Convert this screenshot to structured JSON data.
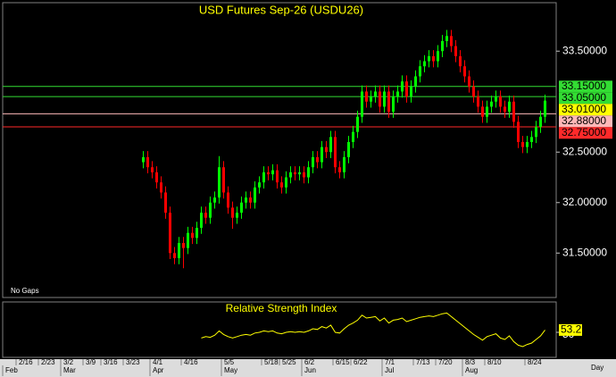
{
  "chart_data": [
    {
      "type": "candlestick",
      "title": "USD Futures Sep-26  (USDU26)",
      "note": "No Gaps",
      "x_label": "Day",
      "up_color": "#00ff00",
      "down_color": "#ff0000",
      "categories": [
        null,
        null,
        null,
        "2/16",
        null,
        null,
        null,
        null,
        "2/23",
        null,
        null,
        null,
        null,
        "3/2",
        null,
        null,
        null,
        null,
        "3/9",
        null,
        null,
        null,
        "3/16",
        null,
        null,
        null,
        null,
        "3/23",
        null,
        null,
        null,
        null,
        null,
        "4/1",
        null,
        null,
        null,
        null,
        null,
        null,
        "4/16",
        null,
        null,
        null,
        null,
        null,
        null,
        null,
        null,
        "5/5",
        null,
        null,
        null,
        null,
        null,
        null,
        null,
        null,
        "5/18",
        null,
        null,
        null,
        "5/25",
        null,
        null,
        null,
        null,
        "6/2",
        null,
        null,
        null,
        null,
        null,
        null,
        "6/15",
        null,
        null,
        null,
        "6/22",
        null,
        null,
        null,
        null,
        null,
        null,
        "7/1",
        null,
        null,
        null,
        null,
        null,
        null,
        "7/13",
        null,
        null,
        null,
        null,
        "7/20",
        null,
        null,
        null,
        null,
        null,
        "8/3",
        null,
        null,
        null,
        null,
        "8/10",
        null,
        null,
        null,
        null,
        null,
        null,
        null,
        null,
        "8/24",
        null,
        null,
        null,
        null,
        null,
        null
      ],
      "months": [
        "Feb",
        null,
        null,
        null,
        null,
        null,
        null,
        null,
        null,
        null,
        null,
        null,
        null,
        "Mar",
        null,
        null,
        null,
        null,
        null,
        null,
        null,
        null,
        null,
        null,
        null,
        null,
        null,
        null,
        null,
        null,
        null,
        null,
        null,
        "Apr",
        null,
        null,
        null,
        null,
        null,
        null,
        null,
        null,
        null,
        null,
        null,
        null,
        null,
        null,
        null,
        "May",
        null,
        null,
        null,
        null,
        null,
        null,
        null,
        null,
        null,
        null,
        null,
        null,
        null,
        null,
        null,
        null,
        null,
        "Jun",
        null,
        null,
        null,
        null,
        null,
        null,
        null,
        null,
        null,
        null,
        null,
        null,
        null,
        null,
        null,
        null,
        null,
        "Jul",
        null,
        null,
        null,
        null,
        null,
        null,
        null,
        null,
        null,
        null,
        null,
        null,
        null,
        null,
        null,
        null,
        null,
        "Aug",
        null,
        null,
        null,
        null,
        null,
        null,
        null,
        null,
        null,
        null,
        null,
        null,
        null,
        null,
        null,
        null,
        null,
        null,
        null,
        null
      ],
      "open": [
        null,
        null,
        null,
        null,
        null,
        null,
        null,
        null,
        null,
        null,
        null,
        null,
        null,
        null,
        null,
        null,
        null,
        null,
        null,
        null,
        null,
        null,
        null,
        null,
        null,
        null,
        null,
        null,
        null,
        null,
        null,
        32.4,
        32.45,
        32.35,
        32.3,
        32.2,
        32.1,
        31.9,
        31.5,
        31.45,
        31.6,
        31.55,
        31.7,
        31.65,
        31.75,
        31.9,
        31.85,
        32.0,
        32.05,
        32.35,
        32.1,
        31.95,
        31.85,
        31.9,
        32.0,
        32.05,
        32.0,
        32.15,
        32.2,
        32.3,
        32.28,
        32.32,
        32.2,
        32.15,
        32.25,
        32.3,
        32.28,
        32.3,
        32.25,
        32.35,
        32.45,
        32.4,
        32.55,
        32.5,
        32.65,
        32.35,
        32.3,
        32.45,
        32.6,
        32.7,
        32.85,
        33.1,
        33.0,
        33.05,
        33.1,
        32.95,
        33.1,
        32.9,
        33.05,
        33.1,
        33.2,
        33.05,
        33.15,
        33.25,
        33.35,
        33.4,
        33.45,
        33.4,
        33.5,
        33.6,
        33.65,
        33.55,
        33.45,
        33.35,
        33.25,
        33.15,
        33.05,
        32.95,
        32.85,
        32.95,
        33.0,
        33.05,
        32.95,
        32.9,
        33.0,
        32.8,
        32.6,
        32.55,
        32.6,
        32.65,
        32.75,
        32.85,
        null,
        null
      ],
      "high": [
        null,
        null,
        null,
        null,
        null,
        null,
        null,
        null,
        null,
        null,
        null,
        null,
        null,
        null,
        null,
        null,
        null,
        null,
        null,
        null,
        null,
        null,
        null,
        null,
        null,
        null,
        null,
        null,
        null,
        null,
        null,
        32.51,
        32.51,
        32.41,
        32.36,
        32.26,
        32.16,
        31.96,
        31.56,
        31.66,
        31.66,
        31.76,
        31.76,
        31.81,
        31.96,
        31.96,
        32.06,
        32.11,
        32.46,
        32.41,
        32.16,
        32.01,
        31.96,
        32.06,
        32.11,
        32.11,
        32.21,
        32.26,
        32.36,
        32.36,
        32.38,
        32.38,
        32.26,
        32.31,
        32.36,
        32.36,
        32.36,
        32.36,
        32.41,
        32.51,
        32.51,
        32.61,
        32.61,
        32.71,
        32.71,
        32.41,
        32.51,
        32.66,
        32.76,
        32.91,
        33.16,
        33.16,
        33.11,
        33.16,
        33.16,
        33.16,
        33.16,
        33.11,
        33.16,
        33.26,
        33.26,
        33.21,
        33.31,
        33.41,
        33.46,
        33.51,
        33.51,
        33.56,
        33.66,
        33.71,
        33.71,
        33.61,
        33.51,
        33.41,
        33.31,
        33.21,
        33.11,
        33.01,
        33.01,
        33.06,
        33.11,
        33.11,
        33.01,
        33.06,
        33.06,
        32.86,
        32.66,
        32.66,
        32.71,
        32.81,
        32.91,
        33.07,
        null,
        null
      ],
      "low": [
        null,
        null,
        null,
        null,
        null,
        null,
        null,
        null,
        null,
        null,
        null,
        null,
        null,
        null,
        null,
        null,
        null,
        null,
        null,
        null,
        null,
        null,
        null,
        null,
        null,
        null,
        null,
        null,
        null,
        null,
        null,
        32.34,
        32.29,
        32.24,
        32.14,
        32.04,
        31.84,
        31.44,
        31.39,
        31.39,
        31.35,
        31.49,
        31.59,
        31.59,
        31.69,
        31.79,
        31.79,
        31.94,
        31.99,
        32.04,
        31.89,
        31.74,
        31.79,
        31.84,
        31.94,
        31.94,
        31.94,
        32.09,
        32.14,
        32.22,
        32.22,
        32.14,
        32.09,
        32.09,
        32.19,
        32.22,
        32.22,
        32.19,
        32.19,
        32.29,
        32.34,
        32.34,
        32.44,
        32.44,
        32.29,
        32.24,
        32.24,
        32.39,
        32.54,
        32.64,
        32.79,
        32.94,
        32.94,
        32.99,
        32.89,
        32.89,
        32.84,
        32.84,
        32.99,
        33.04,
        32.99,
        32.99,
        33.09,
        33.19,
        33.29,
        33.34,
        33.34,
        33.34,
        33.44,
        33.54,
        33.49,
        33.39,
        33.29,
        33.19,
        33.09,
        32.99,
        32.89,
        32.79,
        32.79,
        32.89,
        32.94,
        32.89,
        32.84,
        32.84,
        32.74,
        32.54,
        32.49,
        32.49,
        32.54,
        32.59,
        32.69,
        32.79,
        null,
        null
      ],
      "close": [
        null,
        null,
        null,
        null,
        null,
        null,
        null,
        null,
        null,
        null,
        null,
        null,
        null,
        null,
        null,
        null,
        null,
        null,
        null,
        null,
        null,
        null,
        null,
        null,
        null,
        null,
        null,
        null,
        null,
        null,
        null,
        32.45,
        32.35,
        32.3,
        32.2,
        32.1,
        31.9,
        31.5,
        31.45,
        31.6,
        31.55,
        31.7,
        31.65,
        31.75,
        31.9,
        31.85,
        32.0,
        32.05,
        32.35,
        32.1,
        31.95,
        31.85,
        31.9,
        32.0,
        32.05,
        32.0,
        32.15,
        32.2,
        32.3,
        32.28,
        32.32,
        32.2,
        32.15,
        32.25,
        32.3,
        32.28,
        32.3,
        32.25,
        32.35,
        32.45,
        32.4,
        32.55,
        32.5,
        32.65,
        32.35,
        32.3,
        32.45,
        32.6,
        32.7,
        32.85,
        33.1,
        33.0,
        33.05,
        33.1,
        32.95,
        33.1,
        32.9,
        33.05,
        33.1,
        33.2,
        33.05,
        33.15,
        33.25,
        33.35,
        33.4,
        33.45,
        33.4,
        33.5,
        33.6,
        33.65,
        33.55,
        33.45,
        33.35,
        33.25,
        33.15,
        33.05,
        32.95,
        32.85,
        32.95,
        33.0,
        33.05,
        32.95,
        32.9,
        33.0,
        32.8,
        32.6,
        32.55,
        32.6,
        32.65,
        32.75,
        32.85,
        33.01,
        null,
        null
      ],
      "ylim": [
        31.06,
        33.98
      ],
      "yticks": [
        {
          "value": 31.5,
          "label": "31.50000"
        },
        {
          "value": 32.0,
          "label": "32.00000"
        },
        {
          "value": 32.5,
          "label": "32.50000"
        },
        {
          "value": 33.5,
          "label": "33.50000"
        }
      ],
      "levels": [
        {
          "value": 33.15,
          "label": "33.15000",
          "color": "#33dd33",
          "line": true
        },
        {
          "value": 33.05,
          "label": "33.05000",
          "color": "#33dd33",
          "line": true
        },
        {
          "value": 33.01,
          "label": "33.01000",
          "color": "#ffff00",
          "line": false
        },
        {
          "value": 32.88,
          "label": "32.88000",
          "color": "#ffb8b8",
          "line": true
        },
        {
          "value": 32.75,
          "label": "32.75000",
          "color": "#ff2a2a",
          "line": true
        }
      ]
    },
    {
      "type": "line",
      "title": "Relative Strength Index",
      "color": "#ffff00",
      "values": [
        null,
        null,
        null,
        null,
        null,
        null,
        null,
        null,
        null,
        null,
        null,
        null,
        null,
        null,
        null,
        null,
        null,
        null,
        null,
        null,
        null,
        null,
        null,
        null,
        null,
        null,
        null,
        null,
        null,
        null,
        null,
        null,
        null,
        null,
        null,
        null,
        null,
        null,
        null,
        null,
        null,
        null,
        null,
        null,
        42,
        44,
        43,
        46,
        52,
        47,
        44,
        42,
        44,
        46,
        47,
        46,
        49,
        50,
        52,
        51,
        52,
        49,
        48,
        50,
        51,
        50,
        51,
        50,
        52,
        55,
        54,
        58,
        56,
        60,
        50,
        49,
        55,
        60,
        63,
        67,
        74,
        70,
        71,
        72,
        66,
        70,
        63,
        67,
        68,
        70,
        65,
        67,
        69,
        71,
        72,
        73,
        72,
        74,
        76,
        77,
        72,
        67,
        62,
        57,
        52,
        47,
        43,
        39,
        44,
        46,
        48,
        42,
        40,
        45,
        37,
        32,
        30,
        33,
        35,
        40,
        45,
        53.26,
        null,
        null
      ],
      "ylim": [
        15,
        90
      ],
      "yticks": [
        50
      ]
    }
  ]
}
